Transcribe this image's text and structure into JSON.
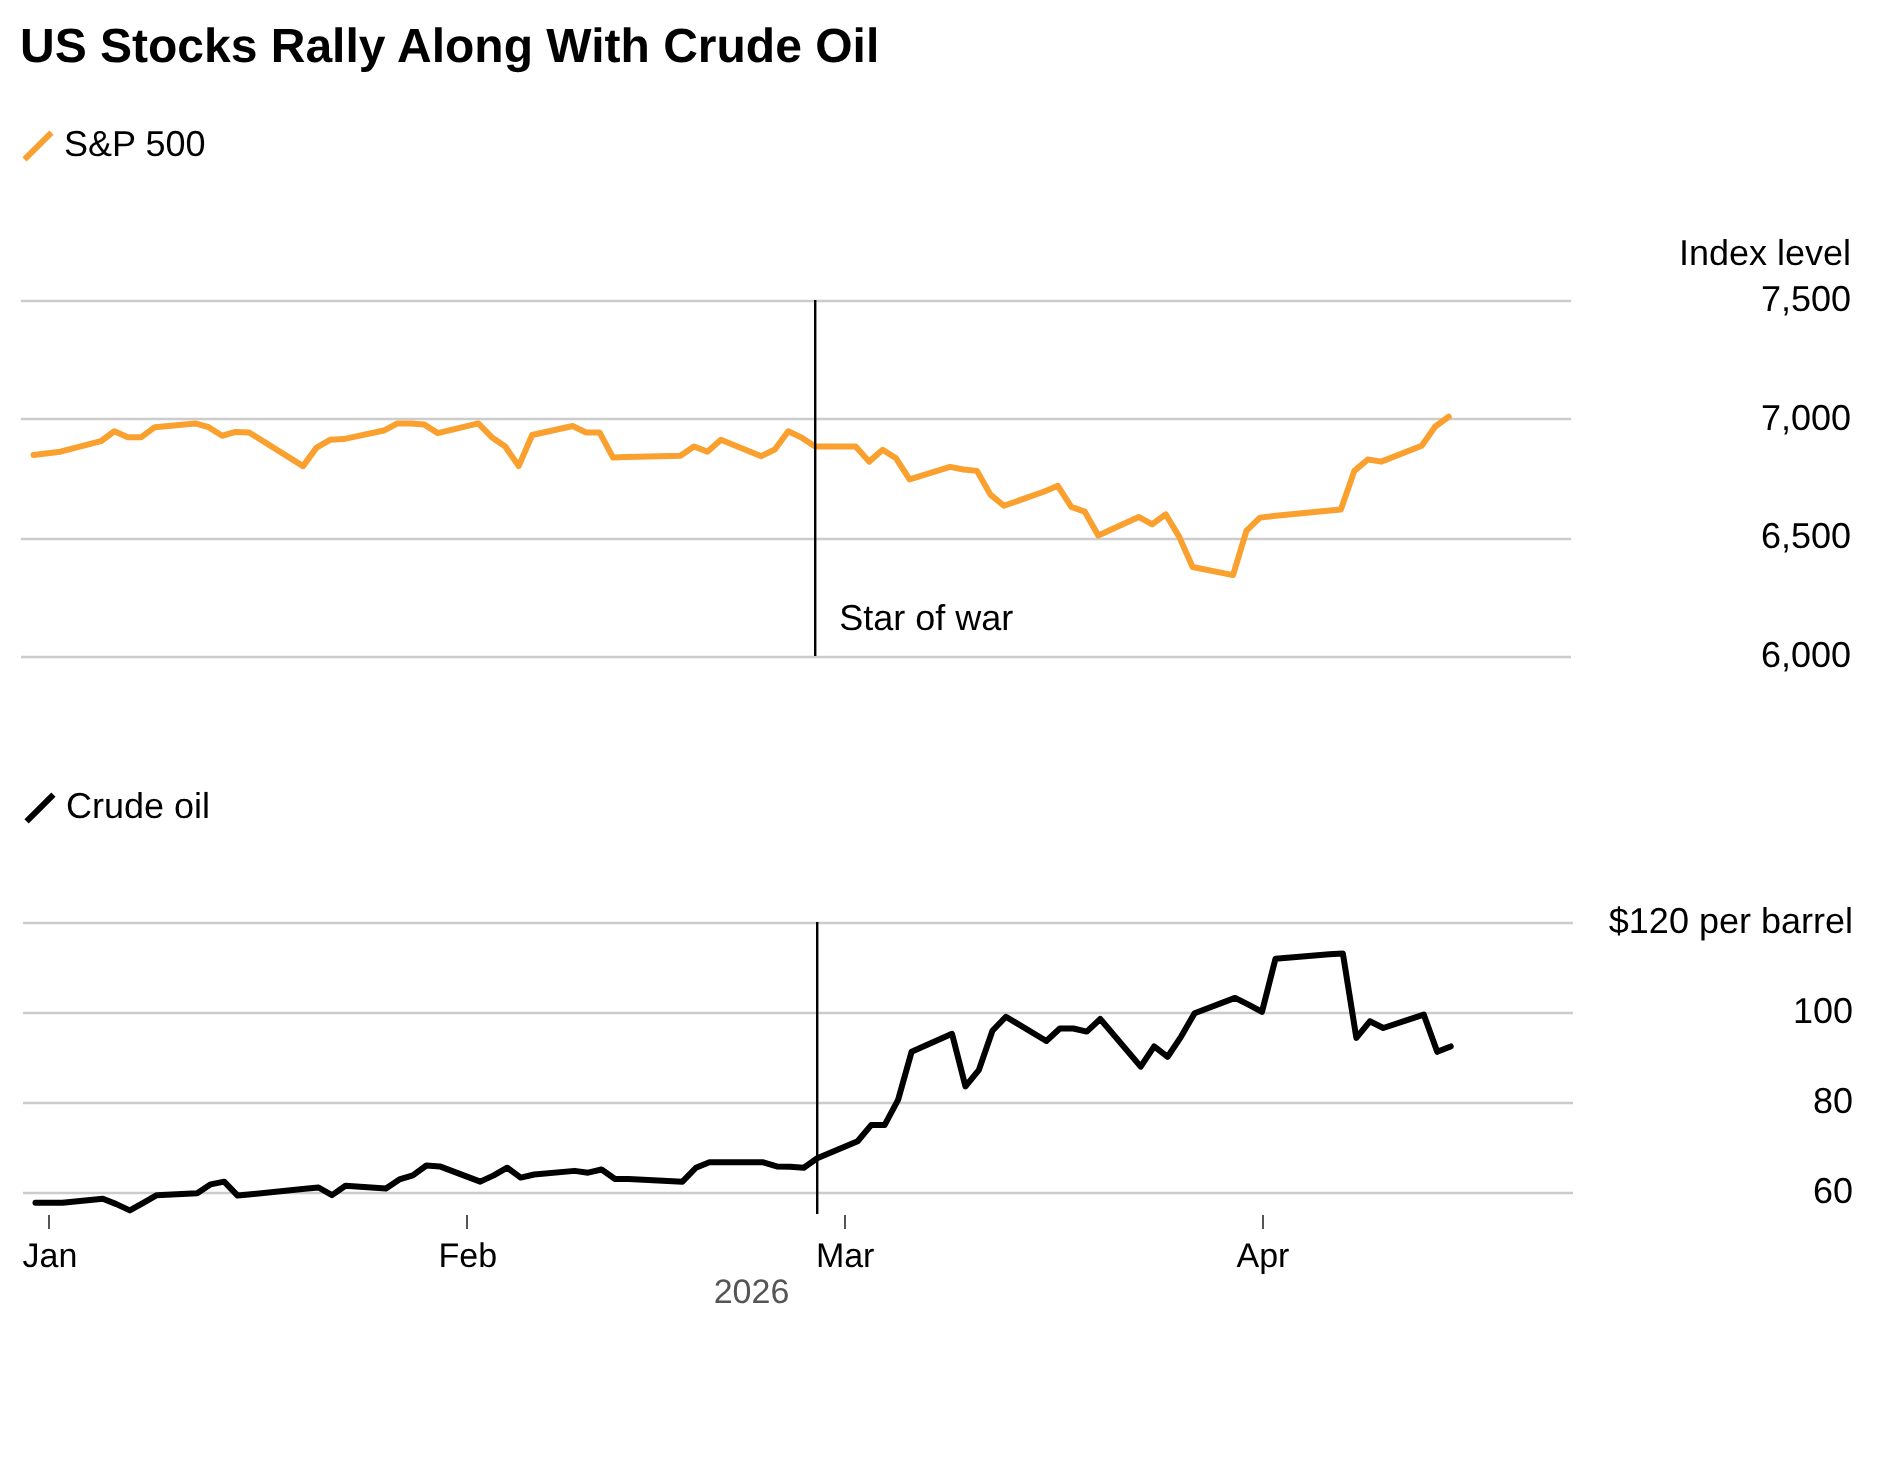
{
  "chart_data": [
    {
      "type": "line",
      "title": "US Stocks Rally Along With Crude Oil",
      "ylabel": "Index level",
      "x": [
        "2025-12-31",
        "2026-01-02",
        "2026-01-05",
        "2026-01-06",
        "2026-01-07",
        "2026-01-08",
        "2026-01-09",
        "2026-01-12",
        "2026-01-13",
        "2026-01-14",
        "2026-01-15",
        "2026-01-16",
        "2026-01-20",
        "2026-01-21",
        "2026-01-22",
        "2026-01-23",
        "2026-01-26",
        "2026-01-27",
        "2026-01-28",
        "2026-01-29",
        "2026-01-30",
        "2026-02-02",
        "2026-02-03",
        "2026-02-04",
        "2026-02-05",
        "2026-02-06",
        "2026-02-09",
        "2026-02-10",
        "2026-02-11",
        "2026-02-12",
        "2026-02-13",
        "2026-02-17",
        "2026-02-18",
        "2026-02-19",
        "2026-02-20",
        "2026-02-23",
        "2026-02-24",
        "2026-02-25",
        "2026-02-26",
        "2026-02-27",
        "2026-03-02",
        "2026-03-03",
        "2026-03-04",
        "2026-03-05",
        "2026-03-06",
        "2026-03-09",
        "2026-03-10",
        "2026-03-11",
        "2026-03-12",
        "2026-03-13",
        "2026-03-16",
        "2026-03-17",
        "2026-03-18",
        "2026-03-19",
        "2026-03-20",
        "2026-03-23",
        "2026-03-24",
        "2026-03-25",
        "2026-03-26",
        "2026-03-27",
        "2026-03-30",
        "2026-03-31",
        "2026-04-01",
        "2026-04-02",
        "2026-04-06",
        "2026-04-07",
        "2026-04-08",
        "2026-04-09",
        "2026-04-10",
        "2026-04-13",
        "2026-04-14",
        "2026-04-15"
      ],
      "series": [
        {
          "name": "S&P 500",
          "color": "#faa02f",
          "values": [
            6847,
            6861,
            6905,
            6947,
            6922,
            6922,
            6964,
            6980,
            6964,
            6928,
            6944,
            6942,
            6800,
            6878,
            6911,
            6914,
            6950,
            6980,
            6980,
            6975,
            6939,
            6980,
            6922,
            6883,
            6800,
            6931,
            6969,
            6942,
            6942,
            6836,
            6838,
            6844,
            6883,
            6861,
            6911,
            6842,
            6870,
            6947,
            6920,
            6883,
            6883,
            6819,
            6869,
            6833,
            6744,
            6797,
            6786,
            6780,
            6680,
            6633,
            6693,
            6717,
            6628,
            6608,
            6508,
            6586,
            6555,
            6597,
            6503,
            6375,
            6341,
            6528,
            6583,
            6590,
            6612,
            6617,
            6780,
            6828,
            6819,
            6886,
            6967,
            7008
          ]
        }
      ],
      "xlim": [
        "2025-12-30",
        "2026-04-24"
      ],
      "ylim": [
        6000,
        7500
      ],
      "yticks": [
        {
          "value": 6000,
          "label": "6,000"
        },
        {
          "value": 6500,
          "label": "6,500"
        },
        {
          "value": 7000,
          "label": "7,000"
        },
        {
          "value": 7500,
          "label": "7,500"
        }
      ],
      "grid": "y",
      "legend": "top left",
      "tick_labels": "y",
      "ref_lines": [
        {
          "axis": "x",
          "value": "2026-02-27",
          "label": "Star of war",
          "color": "#000000"
        }
      ]
    },
    {
      "type": "line",
      "x": [
        "2025-12-31",
        "2026-01-02",
        "2026-01-05",
        "2026-01-06",
        "2026-01-07",
        "2026-01-08",
        "2026-01-09",
        "2026-01-12",
        "2026-01-13",
        "2026-01-14",
        "2026-01-15",
        "2026-01-16",
        "2026-01-20",
        "2026-01-21",
        "2026-01-22",
        "2026-01-23",
        "2026-01-26",
        "2026-01-27",
        "2026-01-28",
        "2026-01-29",
        "2026-01-30",
        "2026-02-02",
        "2026-02-03",
        "2026-02-04",
        "2026-02-05",
        "2026-02-06",
        "2026-02-09",
        "2026-02-10",
        "2026-02-11",
        "2026-02-12",
        "2026-02-13",
        "2026-02-17",
        "2026-02-18",
        "2026-02-19",
        "2026-02-20",
        "2026-02-23",
        "2026-02-24",
        "2026-02-25",
        "2026-02-26",
        "2026-02-27",
        "2026-03-02",
        "2026-03-03",
        "2026-03-04",
        "2026-03-05",
        "2026-03-06",
        "2026-03-09",
        "2026-03-10",
        "2026-03-11",
        "2026-03-12",
        "2026-03-13",
        "2026-03-16",
        "2026-03-17",
        "2026-03-18",
        "2026-03-19",
        "2026-03-20",
        "2026-03-23",
        "2026-03-24",
        "2026-03-25",
        "2026-03-26",
        "2026-03-27",
        "2026-03-30",
        "2026-03-31",
        "2026-04-01",
        "2026-04-02",
        "2026-04-06",
        "2026-04-07",
        "2026-04-08",
        "2026-04-09",
        "2026-04-10",
        "2026-04-13",
        "2026-04-14",
        "2026-04-15"
      ],
      "series": [
        {
          "name": "Crude oil",
          "color": "#000000",
          "values": [
            57.5,
            57.5,
            58.4,
            57.2,
            55.8,
            57.5,
            59.2,
            59.6,
            61.6,
            62.2,
            59.1,
            59.4,
            60.6,
            60.9,
            59.2,
            61.3,
            60.7,
            62.7,
            63.6,
            65.8,
            65.6,
            62.2,
            63.6,
            65.3,
            63.1,
            63.8,
            64.6,
            64.2,
            64.9,
            62.8,
            62.8,
            62.2,
            65.3,
            66.5,
            66.5,
            66.5,
            65.6,
            65.5,
            65.3,
            67.4,
            71.2,
            74.8,
            74.8,
            80.4,
            91.1,
            95.1,
            83.4,
            87.1,
            95.8,
            98.9,
            93.5,
            96.3,
            96.3,
            95.6,
            98.4,
            87.8,
            92.3,
            90.0,
            94.5,
            99.7,
            103.1,
            101.6,
            100,
            111.8,
            112.8,
            113.0,
            94.2,
            97.9,
            96.4,
            99.4,
            91.1,
            92.3
          ]
        }
      ],
      "xlim": [
        "2025-12-30",
        "2026-04-24"
      ],
      "xticks": [
        {
          "value": "2026-01-01",
          "label": "Jan"
        },
        {
          "value": "2026-02-01",
          "label": "Feb"
        },
        {
          "value": "2026-03-01",
          "label": "Mar"
        },
        {
          "value": "2026-04-01",
          "label": "Apr"
        }
      ],
      "xlabel": "2026",
      "ylim": [
        55,
        120
      ],
      "yticks": [
        60,
        80,
        100,
        {
          "value": 120,
          "label": "$120 per barrel"
        }
      ],
      "grid": "y",
      "legend": "top left",
      "ref_lines": [
        {
          "axis": "x",
          "value": "2026-02-27",
          "color": "#000000"
        }
      ]
    }
  ]
}
